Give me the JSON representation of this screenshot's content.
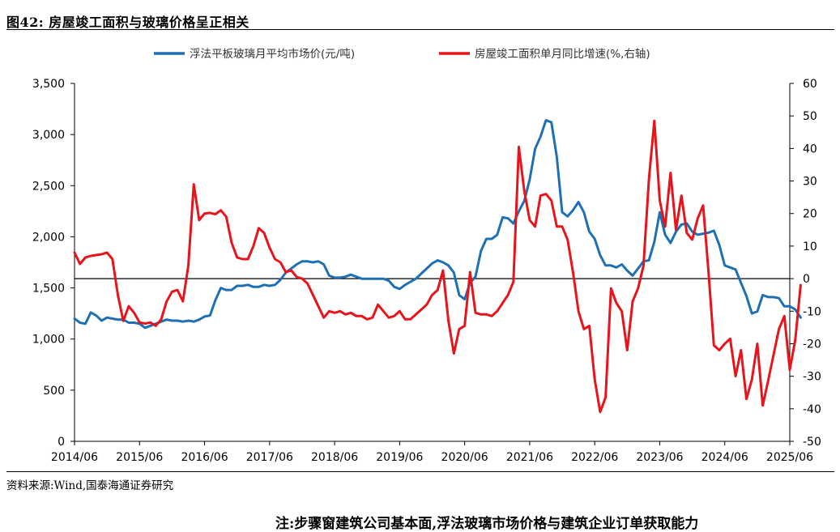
{
  "header": {
    "title": "图42:  房屋竣工面积与玻璃价格呈正相关"
  },
  "footer": {
    "source": "资料来源:Wind,国泰海通证券研究",
    "note": "注:步骤窗建筑公司基本面,浮法玻璃市场价格与建筑企业订单获取能力"
  },
  "chart_data": {
    "type": "line",
    "title": "房屋竣工面积与玻璃价格呈正相关",
    "x_labels": [
      "2014/06",
      "2015/06",
      "2016/06",
      "2017/06",
      "2018/06",
      "2019/06",
      "2020/06",
      "2021/06",
      "2022/06",
      "2023/06",
      "2024/06",
      "2025/06"
    ],
    "x_range": [
      "2014/06",
      "2025/06"
    ],
    "y_left": {
      "min": 0,
      "max": 3500,
      "step": 500,
      "tick_labels": [
        "0",
        "500",
        "1,000",
        "1,500",
        "2,000",
        "2,500",
        "3,000",
        "3,500"
      ]
    },
    "y_right": {
      "min": -50,
      "max": 60,
      "step": 10,
      "tick_labels": [
        "-50",
        "-40",
        "-30",
        "-20",
        "-10",
        "0",
        "10",
        "20",
        "30",
        "40",
        "50",
        "60"
      ]
    },
    "legend": {
      "placement": "top-center"
    },
    "series": [
      {
        "name": "浮法平板玻璃月平均市场价(元/吨)",
        "axis": "left",
        "color": "#1F6FB5",
        "points": [
          [
            0,
            1200
          ],
          [
            1,
            1160
          ],
          [
            2,
            1150
          ],
          [
            3,
            1260
          ],
          [
            4,
            1230
          ],
          [
            5,
            1180
          ],
          [
            6,
            1210
          ],
          [
            7,
            1200
          ],
          [
            8,
            1190
          ],
          [
            9,
            1190
          ],
          [
            10,
            1160
          ],
          [
            11,
            1160
          ],
          [
            12,
            1150
          ],
          [
            13,
            1110
          ],
          [
            14,
            1130
          ],
          [
            15,
            1150
          ],
          [
            16,
            1170
          ],
          [
            17,
            1190
          ],
          [
            18,
            1180
          ],
          [
            19,
            1180
          ],
          [
            20,
            1170
          ],
          [
            21,
            1180
          ],
          [
            22,
            1170
          ],
          [
            23,
            1190
          ],
          [
            24,
            1220
          ],
          [
            25,
            1230
          ],
          [
            26,
            1380
          ],
          [
            27,
            1500
          ],
          [
            28,
            1480
          ],
          [
            29,
            1480
          ],
          [
            30,
            1520
          ],
          [
            31,
            1520
          ],
          [
            32,
            1530
          ],
          [
            33,
            1510
          ],
          [
            34,
            1510
          ],
          [
            35,
            1530
          ],
          [
            36,
            1520
          ],
          [
            37,
            1530
          ],
          [
            38,
            1580
          ],
          [
            39,
            1650
          ],
          [
            40,
            1690
          ],
          [
            41,
            1730
          ],
          [
            42,
            1760
          ],
          [
            43,
            1760
          ],
          [
            44,
            1750
          ],
          [
            45,
            1760
          ],
          [
            46,
            1730
          ],
          [
            47,
            1620
          ],
          [
            48,
            1600
          ],
          [
            49,
            1600
          ],
          [
            50,
            1610
          ],
          [
            51,
            1630
          ],
          [
            52,
            1610
          ],
          [
            53,
            1590
          ],
          [
            54,
            1590
          ],
          [
            55,
            1590
          ],
          [
            56,
            1590
          ],
          [
            57,
            1590
          ],
          [
            58,
            1570
          ],
          [
            59,
            1510
          ],
          [
            60,
            1490
          ],
          [
            61,
            1530
          ],
          [
            62,
            1560
          ],
          [
            63,
            1590
          ],
          [
            64,
            1640
          ],
          [
            65,
            1690
          ],
          [
            66,
            1740
          ],
          [
            67,
            1770
          ],
          [
            68,
            1750
          ],
          [
            69,
            1720
          ],
          [
            70,
            1650
          ],
          [
            71,
            1430
          ],
          [
            72,
            1390
          ],
          [
            73,
            1550
          ],
          [
            74,
            1610
          ],
          [
            75,
            1860
          ],
          [
            76,
            1980
          ],
          [
            77,
            1980
          ],
          [
            78,
            2020
          ],
          [
            79,
            2190
          ],
          [
            80,
            2180
          ],
          [
            81,
            2130
          ],
          [
            82,
            2250
          ],
          [
            83,
            2350
          ],
          [
            84,
            2560
          ],
          [
            85,
            2860
          ],
          [
            86,
            2980
          ],
          [
            87,
            3140
          ],
          [
            88,
            3120
          ],
          [
            89,
            2780
          ],
          [
            90,
            2240
          ],
          [
            91,
            2200
          ],
          [
            92,
            2260
          ],
          [
            93,
            2340
          ],
          [
            94,
            2240
          ],
          [
            95,
            2050
          ],
          [
            96,
            1980
          ],
          [
            97,
            1820
          ],
          [
            98,
            1720
          ],
          [
            99,
            1720
          ],
          [
            100,
            1700
          ],
          [
            101,
            1730
          ],
          [
            102,
            1670
          ],
          [
            103,
            1620
          ],
          [
            104,
            1690
          ],
          [
            105,
            1760
          ],
          [
            106,
            1770
          ],
          [
            107,
            1950
          ],
          [
            108,
            2240
          ],
          [
            109,
            2020
          ],
          [
            110,
            1940
          ],
          [
            111,
            2050
          ],
          [
            112,
            2120
          ],
          [
            113,
            2130
          ],
          [
            114,
            2050
          ],
          [
            115,
            2020
          ],
          [
            116,
            2030
          ],
          [
            117,
            2040
          ],
          [
            118,
            2060
          ],
          [
            119,
            1920
          ],
          [
            120,
            1720
          ],
          [
            121,
            1700
          ],
          [
            122,
            1680
          ],
          [
            123,
            1550
          ],
          [
            124,
            1420
          ],
          [
            125,
            1250
          ],
          [
            126,
            1270
          ],
          [
            127,
            1430
          ],
          [
            128,
            1410
          ],
          [
            129,
            1410
          ],
          [
            130,
            1400
          ],
          [
            131,
            1320
          ],
          [
            132,
            1320
          ],
          [
            133,
            1290
          ],
          [
            134,
            1210
          ]
        ]
      },
      {
        "name": "房屋竣工面积单月同比增速(%,右轴)",
        "axis": "right",
        "color": "#E8141B",
        "points": [
          [
            0,
            8
          ],
          [
            1,
            4.5
          ],
          [
            2,
            6.5
          ],
          [
            3,
            7
          ],
          [
            5,
            7.5
          ],
          [
            6,
            8
          ],
          [
            7,
            6
          ],
          [
            8,
            -5
          ],
          [
            9,
            -13
          ],
          [
            10,
            -8.5
          ],
          [
            11,
            -10.5
          ],
          [
            12,
            -13.5
          ],
          [
            13,
            -13.8
          ],
          [
            14,
            -13.5
          ],
          [
            15,
            -14.5
          ],
          [
            16,
            -12.5
          ],
          [
            17,
            -7
          ],
          [
            18,
            -4
          ],
          [
            19,
            -3.5
          ],
          [
            20,
            -7
          ],
          [
            21,
            4
          ],
          [
            22,
            29
          ],
          [
            23,
            18
          ],
          [
            24,
            20
          ],
          [
            25,
            20.2
          ],
          [
            26,
            19.8
          ],
          [
            27,
            21
          ],
          [
            28,
            19
          ],
          [
            29,
            11
          ],
          [
            30,
            6.5
          ],
          [
            31,
            6
          ],
          [
            32,
            6
          ],
          [
            33,
            10
          ],
          [
            34,
            15.5
          ],
          [
            35,
            14
          ],
          [
            36,
            9.5
          ],
          [
            37,
            6
          ],
          [
            38,
            5
          ],
          [
            39,
            2
          ],
          [
            40,
            2.5
          ],
          [
            41,
            0.5
          ],
          [
            42,
            0
          ],
          [
            43,
            -1.5
          ],
          [
            44,
            -5
          ],
          [
            45,
            -8.5
          ],
          [
            46,
            -12
          ],
          [
            47,
            -10
          ],
          [
            48,
            -10.5
          ],
          [
            49,
            -10
          ],
          [
            50,
            -11
          ],
          [
            51,
            -10.5
          ],
          [
            52,
            -11.5
          ],
          [
            53,
            -11.5
          ],
          [
            54,
            -12.5
          ],
          [
            55,
            -12
          ],
          [
            56,
            -8
          ],
          [
            57,
            -10
          ],
          [
            58,
            -12
          ],
          [
            59,
            -11.5
          ],
          [
            60,
            -10
          ],
          [
            61,
            -12.5
          ],
          [
            62,
            -12.5
          ],
          [
            63,
            -11
          ],
          [
            64,
            -9.5
          ],
          [
            65,
            -8
          ],
          [
            66,
            -5
          ],
          [
            67,
            -3.5
          ],
          [
            68,
            2.5
          ],
          [
            69,
            -13
          ],
          [
            70,
            -23
          ],
          [
            71,
            -15.5
          ],
          [
            72,
            -14.5
          ],
          [
            73,
            2
          ],
          [
            74,
            -10.5
          ],
          [
            75,
            -11
          ],
          [
            76,
            -11
          ],
          [
            77,
            -11.5
          ],
          [
            78,
            -10
          ],
          [
            79,
            -7.5
          ],
          [
            80,
            -5
          ],
          [
            81,
            -1
          ],
          [
            82,
            40.5
          ],
          [
            83,
            27
          ],
          [
            84,
            18
          ],
          [
            85,
            16
          ],
          [
            86,
            25.5
          ],
          [
            87,
            26
          ],
          [
            88,
            24
          ],
          [
            89,
            16
          ],
          [
            90,
            16
          ],
          [
            91,
            12
          ],
          [
            92,
            2
          ],
          [
            93,
            -10
          ],
          [
            94,
            -15.5
          ],
          [
            95,
            -14.5
          ],
          [
            96,
            -31
          ],
          [
            97,
            -41
          ],
          [
            98,
            -36.5
          ],
          [
            99,
            -3
          ],
          [
            100,
            -7.5
          ],
          [
            101,
            -10
          ],
          [
            102,
            -22
          ],
          [
            103,
            -7
          ],
          [
            104,
            -3
          ],
          [
            105,
            4
          ],
          [
            106,
            30.5
          ],
          [
            107,
            48.5
          ],
          [
            108,
            24
          ],
          [
            109,
            16
          ],
          [
            110,
            32.5
          ],
          [
            111,
            15
          ],
          [
            112,
            25.5
          ],
          [
            113,
            14
          ],
          [
            114,
            12
          ],
          [
            115,
            18.5
          ],
          [
            116,
            22.5
          ],
          [
            117,
            2
          ],
          [
            118,
            -20.5
          ],
          [
            119,
            -22
          ],
          [
            120,
            -20
          ],
          [
            121,
            -18.5
          ],
          [
            122,
            -30
          ],
          [
            123,
            -22
          ],
          [
            124,
            -37
          ],
          [
            125,
            -31
          ],
          [
            126,
            -20
          ],
          [
            127,
            -39
          ],
          [
            128,
            -31.5
          ],
          [
            129,
            -23.5
          ],
          [
            130,
            -15.5
          ],
          [
            131,
            -11.5
          ],
          [
            132,
            -28
          ],
          [
            133,
            -19
          ],
          [
            134,
            -2
          ]
        ]
      }
    ]
  }
}
